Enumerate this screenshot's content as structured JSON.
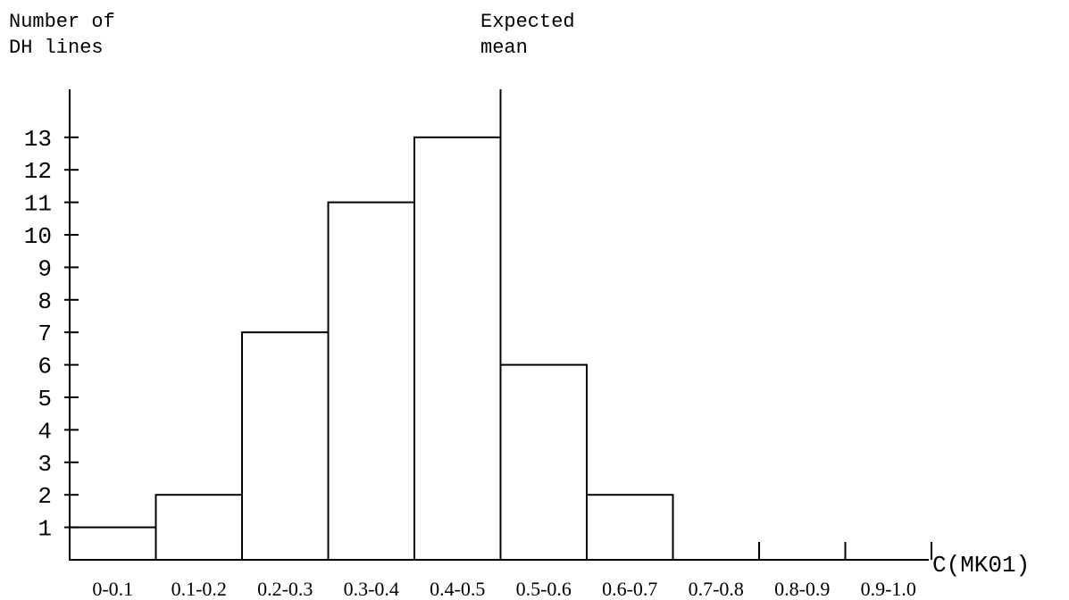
{
  "annotations": {
    "ylabel_line1": "Number of",
    "ylabel_line2": "DH lines",
    "mean_line1": "Expected",
    "mean_line2": "mean"
  },
  "chart_data": {
    "type": "bar",
    "title": "",
    "xlabel": "C(MK01)",
    "ylabel": "Number of DH lines",
    "categories": [
      "0-0.1",
      "0.1-0.2",
      "0.2-0.3",
      "0.3-0.4",
      "0.4-0.5",
      "0.5-0.6",
      "0.6-0.7",
      "0.7-0.8",
      "0.8-0.9",
      "0.9-1.0"
    ],
    "values": [
      1,
      2,
      7,
      11,
      13,
      6,
      2,
      0,
      0,
      0
    ],
    "yticks": [
      1,
      2,
      3,
      4,
      5,
      6,
      7,
      8,
      9,
      10,
      11,
      12,
      13
    ],
    "ylim": [
      0,
      14
    ],
    "expected_mean": 0.5,
    "grid": false,
    "legend": "none",
    "colors": {
      "bar_fill": "#ffffff",
      "bar_stroke": "#000000",
      "text": "#000000"
    }
  }
}
